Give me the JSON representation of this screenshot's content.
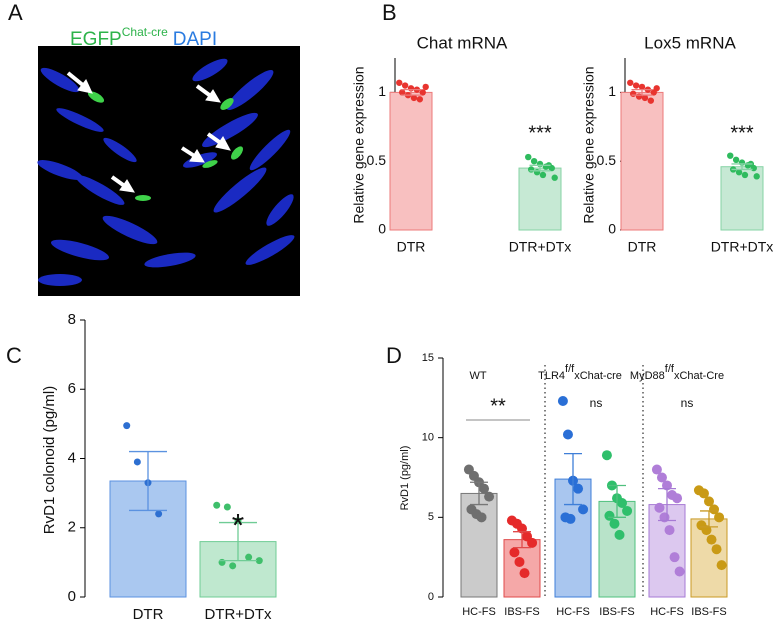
{
  "panels": [
    "A",
    "B",
    "C",
    "D"
  ],
  "image_panel": {
    "label": "EGFP",
    "label_sup": "Chat-cre",
    "label2": "DAPI"
  },
  "chart_data": [
    {
      "type": "bar",
      "title": "Chat mRNA",
      "ylabel": "Relative gene expression",
      "categories": [
        "DTR",
        "DTR+DTx"
      ],
      "values": [
        1.0,
        0.45
      ],
      "errors": [
        0.02,
        0.02
      ],
      "points": [
        [
          1.07,
          1.05,
          1.03,
          1.02,
          1.0,
          1.0,
          0.98,
          0.96,
          0.95,
          1.04
        ],
        [
          0.53,
          0.5,
          0.48,
          0.46,
          0.45,
          0.44,
          0.42,
          0.4,
          0.47,
          0.38
        ]
      ],
      "colors": [
        "#f8c0c0",
        "#c6e9d4"
      ],
      "edge_colors": [
        "#ec7a7a",
        "#86d3a5"
      ],
      "point_colors": [
        "#e8342f",
        "#2fbb5e"
      ],
      "ylim": [
        0,
        1.25
      ],
      "yticks": [
        0,
        0.5,
        1
      ],
      "annotations": [
        "***"
      ]
    },
    {
      "type": "bar",
      "title": "Lox5 mRNA",
      "ylabel": "Relative gene expression",
      "categories": [
        "DTR",
        "DTR+DTx"
      ],
      "values": [
        1.0,
        0.46
      ],
      "errors": [
        0.02,
        0.02
      ],
      "points": [
        [
          1.07,
          1.05,
          1.04,
          1.02,
          1.0,
          0.99,
          0.97,
          0.96,
          0.94,
          1.03
        ],
        [
          0.54,
          0.51,
          0.49,
          0.47,
          0.45,
          0.44,
          0.42,
          0.4,
          0.48,
          0.39
        ]
      ],
      "colors": [
        "#f8c0c0",
        "#c6e9d4"
      ],
      "edge_colors": [
        "#ec7a7a",
        "#86d3a5"
      ],
      "point_colors": [
        "#e8342f",
        "#2fbb5e"
      ],
      "ylim": [
        0,
        1.25
      ],
      "yticks": [
        0,
        0.5,
        1
      ],
      "annotations": [
        "***"
      ]
    },
    {
      "type": "bar",
      "ylabel": "RvD1 colonoid (pg/ml)",
      "categories": [
        "DTR",
        "DTR+DTx"
      ],
      "values": [
        3.35,
        1.6
      ],
      "errors": [
        0.85,
        0.55
      ],
      "points": [
        [
          4.95,
          3.9,
          3.3,
          2.4
        ],
        [
          2.65,
          2.6,
          2.2,
          1.15,
          1.05,
          1.0,
          0.9
        ]
      ],
      "colors": [
        "#aac8f0",
        "#bfe8cf"
      ],
      "edge_colors": [
        "#5b92e0",
        "#6fcc95"
      ],
      "point_colors": [
        "#2d6fd1",
        "#3fbf6b"
      ],
      "ylim": [
        0,
        8
      ],
      "yticks": [
        0,
        2,
        4,
        6,
        8
      ],
      "annotations": [
        "*"
      ]
    },
    {
      "type": "bar",
      "ylabel": "RvD1 (pg/ml)",
      "categories": [
        "HC-FS",
        "IBS-FS",
        "HC-FS",
        "IBS-FS",
        "HC-FS",
        "IBS-FS"
      ],
      "values": [
        6.5,
        3.6,
        7.4,
        6.0,
        5.8,
        4.9
      ],
      "errors": [
        0.7,
        0.5,
        1.6,
        1.0,
        1.0,
        0.5
      ],
      "points": [
        [
          8.0,
          7.6,
          7.2,
          6.8,
          6.3,
          5.5,
          5.2,
          5.0
        ],
        [
          4.8,
          4.6,
          4.3,
          3.8,
          3.4,
          2.8,
          2.2,
          1.5
        ],
        [
          12.3,
          10.2,
          7.3,
          6.8,
          5.5,
          5.0,
          4.9
        ],
        [
          8.9,
          7.0,
          6.2,
          5.9,
          5.4,
          5.1,
          4.6,
          3.9
        ],
        [
          8.0,
          7.5,
          7.0,
          6.4,
          6.2,
          5.6,
          5.0,
          4.2,
          2.5,
          1.6
        ],
        [
          6.7,
          6.5,
          6.0,
          5.5,
          5.0,
          4.5,
          4.2,
          3.6,
          3.0,
          2.0
        ]
      ],
      "colors": [
        "#cbcbcb",
        "#f5a8a8",
        "#a9c6ef",
        "#b8e3c9",
        "#dcc8ef",
        "#eedaa8"
      ],
      "edge_colors": [
        "#777777",
        "#e04a4a",
        "#3f7fd8",
        "#4fc07e",
        "#a67ad4",
        "#c99a25"
      ],
      "point_colors": [
        "#6f6f6f",
        "#e52a2a",
        "#2a6fd6",
        "#2fbf6b",
        "#b07ed8",
        "#c99a15"
      ],
      "groups": [
        {
          "name": "WT"
        },
        {
          "name": "TLR4",
          "sup": "f/f",
          "suffix": "xChat-cre"
        },
        {
          "name": "MyD88",
          "sup": "f/f",
          "suffix": "xChat-Cre"
        }
      ],
      "ylim": [
        0,
        15
      ],
      "yticks": [
        0,
        5,
        10,
        15
      ],
      "annotations": [
        "**",
        "ns",
        "ns"
      ]
    }
  ]
}
